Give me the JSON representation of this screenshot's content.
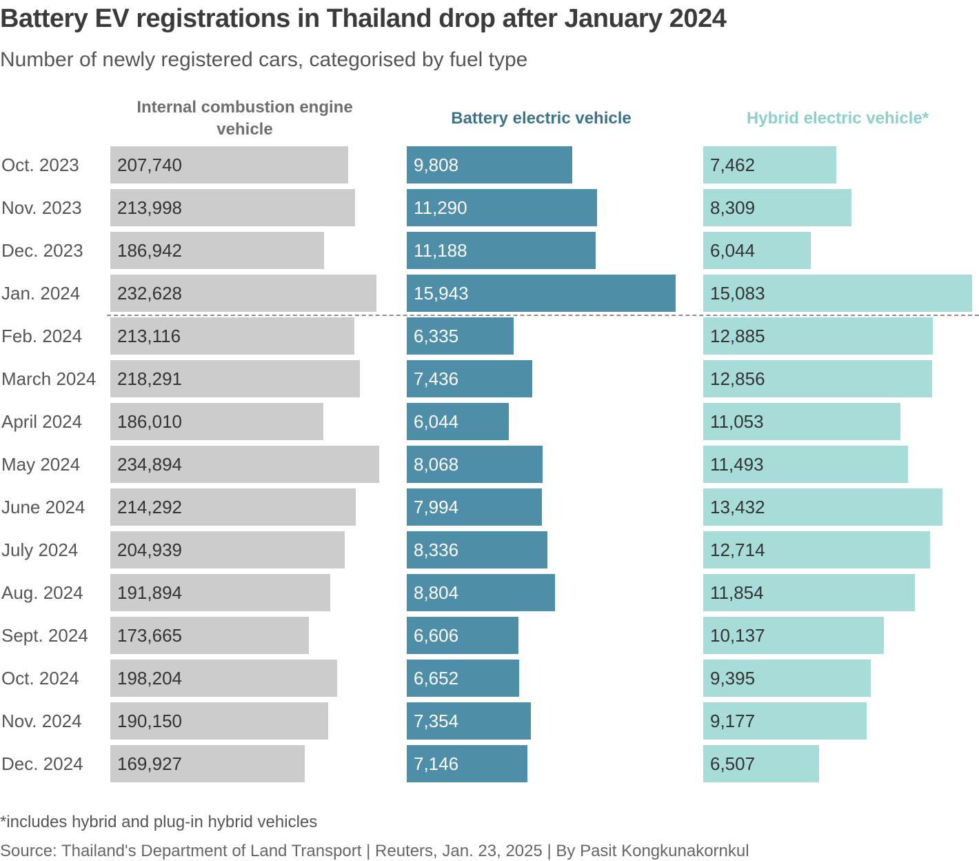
{
  "header": {
    "title": "Battery EV registrations in Thailand drop after January 2024",
    "subtitle": "Number of newly registered cars, categorised by fuel type"
  },
  "footer": {
    "footnote": "*includes hybrid and plug-in hybrid vehicles",
    "source": "Source: Thailand's Department of Land Transport | Reuters, Jan. 23, 2025 | By Pasit Kongkunakornkul"
  },
  "colors": {
    "ice": "#cccccc",
    "ice_header": "#6e6e6e",
    "bev": "#4e8ea8",
    "bev_header": "#3d7389",
    "hev": "#a7dcd9",
    "hev_header": "#8dcfcb",
    "ice_text": "#333333",
    "bev_text": "#ffffff",
    "hev_text": "#333333"
  },
  "chart_data": {
    "type": "bar",
    "orientation": "horizontal",
    "title": "Battery EV registrations in Thailand drop after January 2024",
    "subtitle": "Number of newly registered cars, categorised by fuel type",
    "categories": [
      "Oct. 2023",
      "Nov. 2023",
      "Dec. 2023",
      "Jan. 2024",
      "Feb. 2024",
      "March 2024",
      "April 2024",
      "May 2024",
      "June 2024",
      "July 2024",
      "Aug. 2024",
      "Sept. 2024",
      "Oct. 2024",
      "Nov. 2024",
      "Dec. 2024"
    ],
    "divider_after": "Jan. 2024",
    "series": [
      {
        "key": "ice",
        "name": "Internal combustion engine vehicle",
        "values": [
          207740,
          213998,
          186942,
          232628,
          213116,
          218291,
          186010,
          234894,
          214292,
          204939,
          191894,
          173665,
          198204,
          190150,
          169927
        ],
        "labels": [
          "207,740",
          "213,998",
          "186,942",
          "232,628",
          "213,116",
          "218,291",
          "186,010",
          "234,894",
          "214,292",
          "204,939",
          "191,894",
          "173,665",
          "198,204",
          "190,150",
          "169,927"
        ],
        "xlim": [
          0,
          234894
        ]
      },
      {
        "key": "bev",
        "name": "Battery electric vehicle",
        "values": [
          9808,
          11290,
          11188,
          15943,
          6335,
          7436,
          6044,
          8068,
          7994,
          8336,
          8804,
          6606,
          6652,
          7354,
          7146
        ],
        "labels": [
          "9,808",
          "11,290",
          "11,188",
          "15,943",
          "6,335",
          "7,436",
          "6,044",
          "8,068",
          "7,994",
          "8,336",
          "8,804",
          "6,606",
          "6,652",
          "7,354",
          "7,146"
        ],
        "xlim": [
          0,
          15943
        ]
      },
      {
        "key": "hev",
        "name": "Hybrid electric vehicle*",
        "values": [
          7462,
          8309,
          6044,
          15083,
          12885,
          12856,
          11053,
          11493,
          13432,
          12714,
          11854,
          10137,
          9395,
          9177,
          6507
        ],
        "labels": [
          "7,462",
          "8,309",
          "6,044",
          "15,083",
          "12,885",
          "12,856",
          "11,053",
          "11,493",
          "13,432",
          "12,714",
          "11,854",
          "10,137",
          "9,395",
          "9,177",
          "6,507"
        ],
        "xlim": [
          0,
          15083
        ]
      }
    ]
  }
}
